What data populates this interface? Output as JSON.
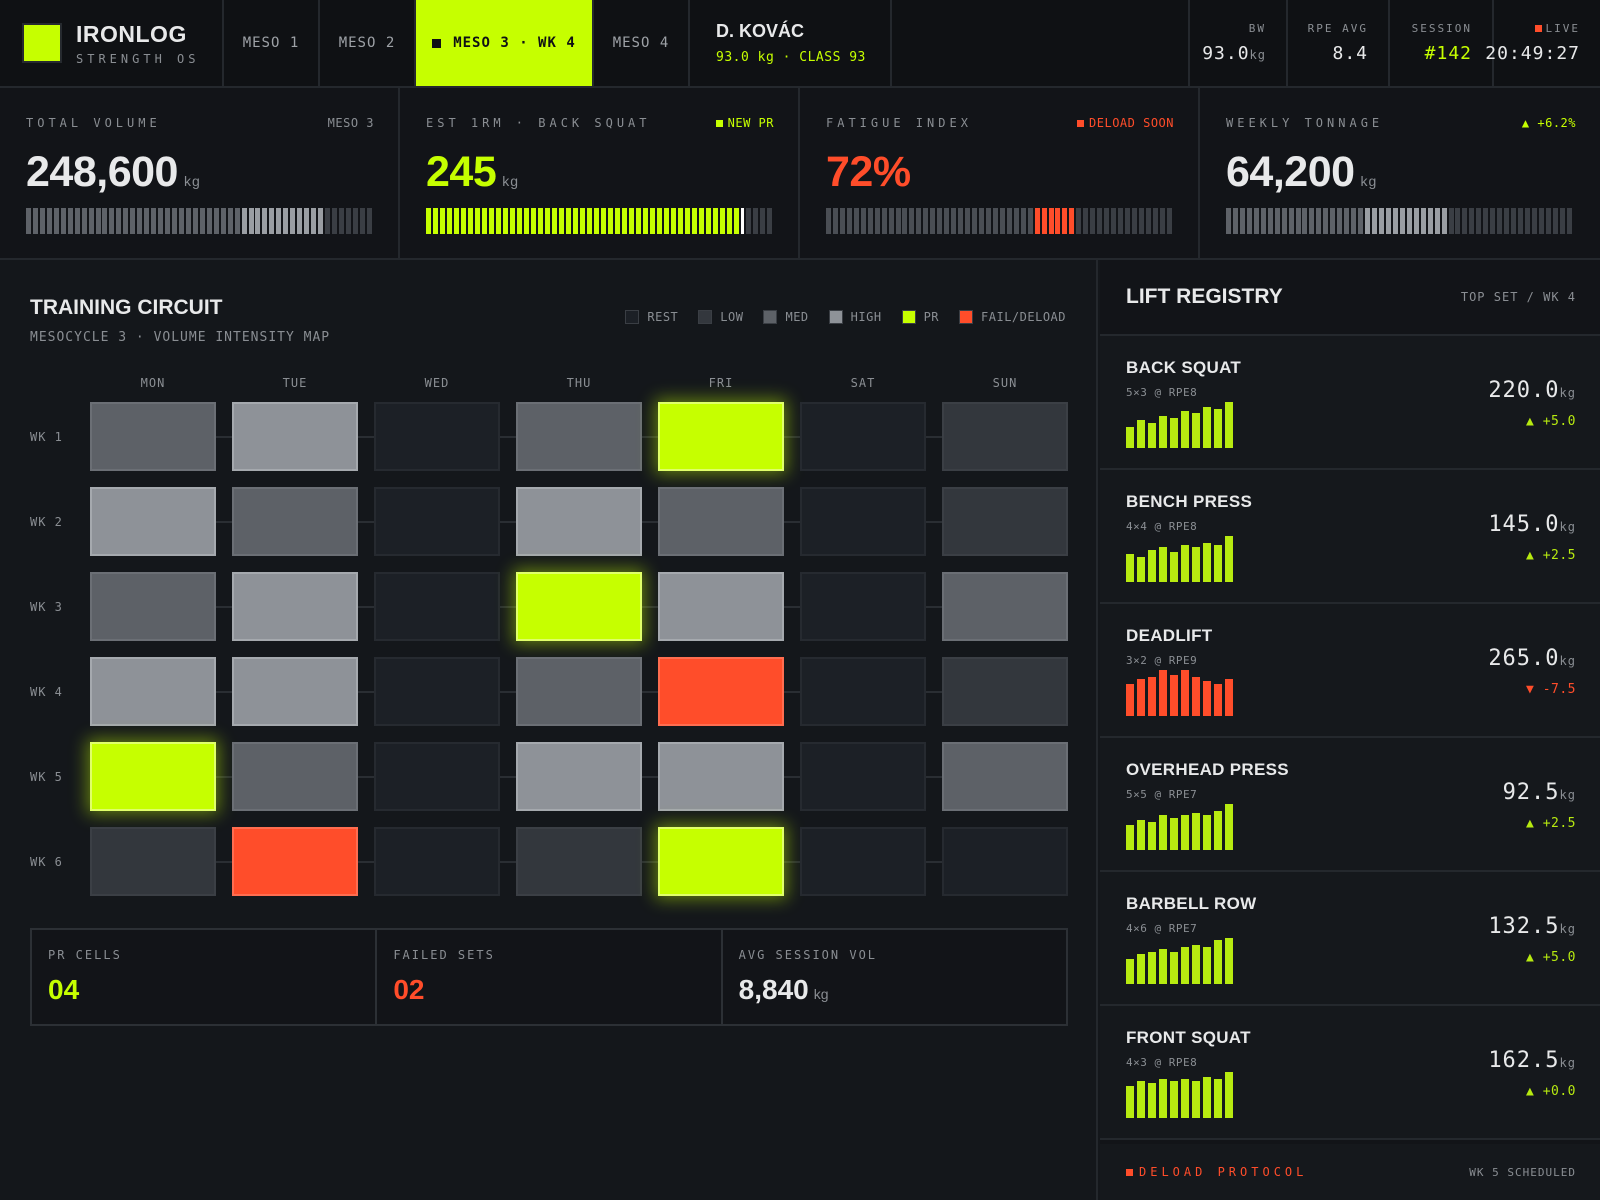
{
  "colors": {
    "accent": "#c6ff00",
    "danger": "#ff4d2a",
    "bg": "#14171b"
  },
  "brand": {
    "name": "IRONLOG",
    "sub": "STRENGTH OS"
  },
  "tabs": [
    {
      "label": "MESO 1"
    },
    {
      "label": "MESO 2"
    },
    {
      "label": "MESO 3 · WK 4",
      "active": true
    },
    {
      "label": "MESO 4"
    }
  ],
  "athlete": {
    "name": "D. KOVÁC",
    "meta": "93.0 kg · CLASS 93"
  },
  "stats": {
    "bw": {
      "label": "BW",
      "value": "93.0",
      "unit": "kg"
    },
    "rpe": {
      "label": "RPE AVG",
      "value": "8.4"
    },
    "session": {
      "label": "SESSION",
      "value": "#142"
    },
    "live": {
      "label": "LIVE",
      "value": "20:49:27"
    }
  },
  "kpis": [
    {
      "label": "TOTAL VOLUME",
      "tag": "MESO 3",
      "value": "248,600",
      "unit": "kg",
      "meter_level": 0.85,
      "meter_segments": 50,
      "meter_style": "grey"
    },
    {
      "label": "EST 1RM · BACK SQUAT",
      "tag": "NEW PR",
      "value": "245",
      "unit": "kg",
      "meter_level": 0.89,
      "meter_segments": 50,
      "meter_style": "lime"
    },
    {
      "label": "FATIGUE INDEX",
      "tag": "DELOAD SOON",
      "value": "72%",
      "unit": "",
      "meter_level": 0.72,
      "meter_segments": 50,
      "meter_style": "fatigue"
    },
    {
      "label": "WEEKLY TONNAGE",
      "tag": "+6.2%",
      "value": "64,200",
      "unit": "kg",
      "meter_level": 0.64,
      "meter_segments": 50,
      "meter_style": "grey"
    }
  ],
  "circuit": {
    "title": "TRAINING CIRCUIT",
    "subtitle": "MESOCYCLE 3 · VOLUME INTENSITY MAP",
    "legend": [
      {
        "key": "rest",
        "label": "REST"
      },
      {
        "key": "low",
        "label": "LOW"
      },
      {
        "key": "med",
        "label": "MED"
      },
      {
        "key": "high",
        "label": "HIGH"
      },
      {
        "key": "pr",
        "label": "PR"
      },
      {
        "key": "fail",
        "label": "FAIL/DELOAD"
      }
    ],
    "days": [
      "MON",
      "TUE",
      "WED",
      "THU",
      "FRI",
      "SAT",
      "SUN"
    ],
    "weeks": [
      {
        "label": "WK 1",
        "cells": [
          "med",
          "high",
          "rest",
          "med",
          "pr",
          "rest",
          "low"
        ]
      },
      {
        "label": "WK 2",
        "cells": [
          "high",
          "med",
          "rest",
          "high",
          "med",
          "rest",
          "low"
        ]
      },
      {
        "label": "WK 3",
        "cells": [
          "med",
          "high",
          "rest",
          "pr",
          "high",
          "rest",
          "med"
        ]
      },
      {
        "label": "WK 4",
        "cells": [
          "high",
          "high",
          "rest",
          "med",
          "fail",
          "rest",
          "low"
        ]
      },
      {
        "label": "WK 5",
        "cells": [
          "pr",
          "med",
          "rest",
          "high",
          "high",
          "rest",
          "med"
        ]
      },
      {
        "label": "WK 6",
        "cells": [
          "low",
          "fail",
          "rest",
          "low",
          "pr",
          "rest",
          "rest"
        ]
      }
    ],
    "summary": [
      {
        "label": "PR CELLS",
        "value": "04",
        "unit": "",
        "tone": "lime"
      },
      {
        "label": "FAILED SETS",
        "value": "02",
        "unit": "",
        "tone": "red"
      },
      {
        "label": "AVG SESSION VOL",
        "value": "8,840",
        "unit": "kg",
        "tone": "white"
      }
    ]
  },
  "registry": {
    "title": "LIFT REGISTRY",
    "subtitle": "TOP SET / WK 4",
    "lifts": [
      {
        "name": "BACK SQUAT",
        "scheme": "5×3 @ RPE8",
        "weight": "220.0",
        "unit": "kg",
        "delta": "+5.0",
        "trend": "up",
        "spark": [
          0.45,
          0.6,
          0.55,
          0.7,
          0.65,
          0.8,
          0.75,
          0.9,
          0.85,
          1.0
        ]
      },
      {
        "name": "BENCH PRESS",
        "scheme": "4×4 @ RPE8",
        "weight": "145.0",
        "unit": "kg",
        "delta": "+2.5",
        "trend": "up",
        "spark": [
          0.6,
          0.55,
          0.7,
          0.75,
          0.65,
          0.8,
          0.75,
          0.85,
          0.8,
          1.0
        ]
      },
      {
        "name": "DEADLIFT",
        "scheme": "3×2 @ RPE9",
        "weight": "265.0",
        "unit": "kg",
        "delta": "-7.5",
        "trend": "down",
        "spark": [
          0.7,
          0.8,
          0.85,
          1.0,
          0.9,
          1.0,
          0.85,
          0.75,
          0.7,
          0.8
        ]
      },
      {
        "name": "OVERHEAD PRESS",
        "scheme": "5×5 @ RPE7",
        "weight": "92.5",
        "unit": "kg",
        "delta": "+2.5",
        "trend": "up",
        "spark": [
          0.55,
          0.65,
          0.6,
          0.75,
          0.7,
          0.75,
          0.8,
          0.75,
          0.85,
          1.0
        ]
      },
      {
        "name": "BARBELL ROW",
        "scheme": "4×6 @ RPE7",
        "weight": "132.5",
        "unit": "kg",
        "delta": "+5.0",
        "trend": "up",
        "spark": [
          0.55,
          0.65,
          0.7,
          0.75,
          0.7,
          0.8,
          0.85,
          0.8,
          0.95,
          1.0
        ]
      },
      {
        "name": "FRONT SQUAT",
        "scheme": "4×3 @ RPE8",
        "weight": "162.5",
        "unit": "kg",
        "delta": "+0.0",
        "trend": "up",
        "spark": [
          0.7,
          0.8,
          0.75,
          0.85,
          0.8,
          0.85,
          0.8,
          0.9,
          0.85,
          1.0
        ]
      }
    ]
  },
  "deload": {
    "label": "DELOAD PROTOCOL",
    "status": "WK 5 SCHEDULED"
  }
}
